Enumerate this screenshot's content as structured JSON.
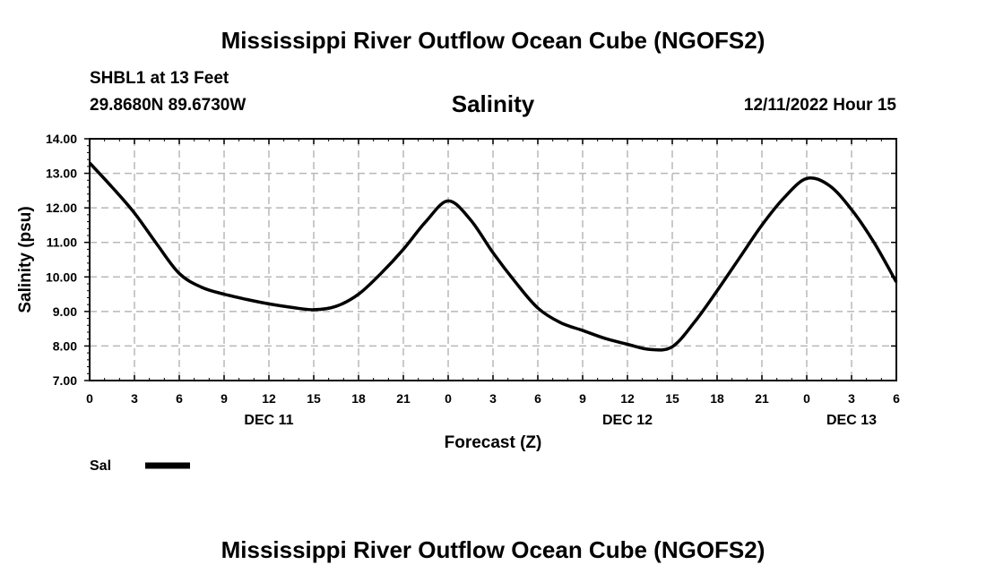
{
  "header": {
    "main_title": "Mississippi River Outflow Ocean Cube (NGOFS2)",
    "station": "SHBL1 at 13 Feet",
    "coordinates": "29.8680N  89.6730W",
    "chart_title": "Salinity",
    "datetime": "12/11/2022 Hour 15"
  },
  "footer": {
    "title": "Mississippi River Outflow Ocean Cube (NGOFS2)"
  },
  "chart_data": {
    "type": "line",
    "title": "Salinity",
    "xlabel": "Forecast (Z)",
    "ylabel": "Salinity (psu)",
    "xlim": [
      0,
      54
    ],
    "ylim": [
      7.0,
      14.0
    ],
    "x_unit": "hours from DEC 11 00Z",
    "x_ticks": [
      0,
      3,
      6,
      9,
      12,
      15,
      18,
      21,
      24,
      27,
      30,
      33,
      36,
      39,
      42,
      45,
      48,
      51,
      54
    ],
    "x_tick_labels": [
      "0",
      "3",
      "6",
      "9",
      "12",
      "15",
      "18",
      "21",
      "0",
      "3",
      "6",
      "9",
      "12",
      "15",
      "18",
      "21",
      "0",
      "3",
      "6"
    ],
    "y_ticks": [
      7.0,
      8.0,
      9.0,
      10.0,
      11.0,
      12.0,
      13.0,
      14.0
    ],
    "y_tick_labels": [
      "7.00",
      "8.00",
      "9.00",
      "10.00",
      "11.00",
      "12.00",
      "13.00",
      "14.00"
    ],
    "day_labels": [
      {
        "hour": 12,
        "label": "DEC 11"
      },
      {
        "hour": 36,
        "label": "DEC 12"
      },
      {
        "hour": 51,
        "label": "DEC 13"
      }
    ],
    "grid": true,
    "legend": [
      {
        "name": "Sal",
        "color": "#000000"
      }
    ],
    "series": [
      {
        "name": "Sal",
        "color": "#000000",
        "x": [
          0,
          1.5,
          3,
          4.5,
          6,
          7.5,
          9,
          10.5,
          12,
          13.5,
          15,
          16.5,
          18,
          19.5,
          21,
          22.5,
          24,
          25.5,
          27,
          28.5,
          30,
          31.5,
          33,
          34.5,
          36,
          37.5,
          39,
          40.5,
          42,
          43.5,
          45,
          46.5,
          48,
          49.5,
          51,
          52.5,
          54
        ],
        "values": [
          13.3,
          12.6,
          11.85,
          10.95,
          10.1,
          9.7,
          9.5,
          9.35,
          9.22,
          9.12,
          9.05,
          9.15,
          9.5,
          10.1,
          10.8,
          11.6,
          12.2,
          11.65,
          10.7,
          9.85,
          9.1,
          8.68,
          8.45,
          8.22,
          8.05,
          7.9,
          7.98,
          8.7,
          9.6,
          10.55,
          11.5,
          12.3,
          12.85,
          12.65,
          11.95,
          11.0,
          9.85
        ]
      }
    ]
  }
}
